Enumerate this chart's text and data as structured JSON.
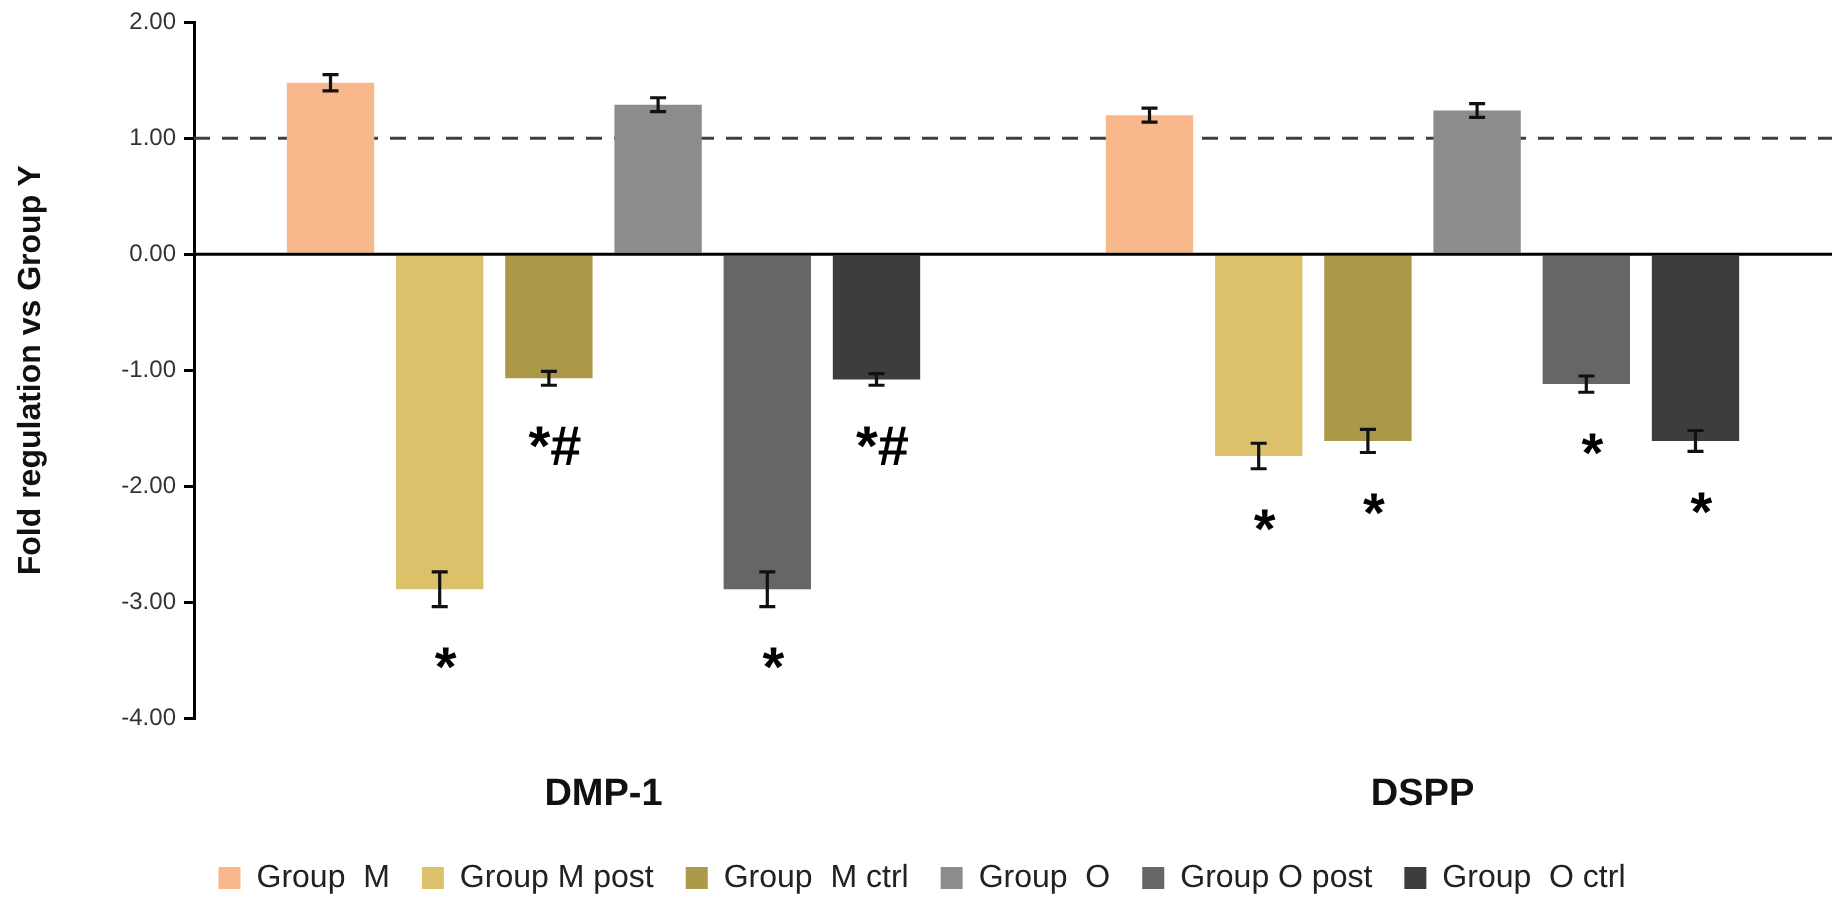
{
  "chart_data": {
    "type": "bar",
    "ylabel": "Fold regulation vs Group Y",
    "categories": [
      "DMP-1",
      "DSPP"
    ],
    "series": [
      {
        "name": "Group  M",
        "color": "#f8b88b",
        "values": [
          1.48,
          1.2
        ],
        "errors": [
          0.07,
          0.06
        ]
      },
      {
        "name": "Group M post",
        "color": "#dcc16a",
        "values": [
          -2.89,
          -1.74
        ],
        "errors": [
          0.15,
          0.11
        ],
        "value_labels": [
          "*",
          "*"
        ]
      },
      {
        "name": "Group  M ctrl",
        "color": "#ab9848",
        "values": [
          -1.07,
          -1.61
        ],
        "errors": [
          0.06,
          0.1
        ],
        "value_labels": [
          "*#",
          "*"
        ]
      },
      {
        "name": "Group  O",
        "color": "#8c8c8c",
        "values": [
          1.29,
          1.24
        ],
        "errors": [
          0.06,
          0.06
        ]
      },
      {
        "name": "Group O post",
        "color": "#666666",
        "values": [
          -2.89,
          -1.12
        ],
        "errors": [
          0.15,
          0.07
        ],
        "value_labels": [
          "*",
          "*"
        ]
      },
      {
        "name": "Group  O ctrl",
        "color": "#3d3d3d",
        "values": [
          -1.08,
          -1.61
        ],
        "errors": [
          0.05,
          0.09
        ],
        "value_labels": [
          "*#",
          "*"
        ]
      }
    ],
    "ylim": [
      -4,
      2
    ],
    "yticks": [
      {
        "value": 2,
        "label": "2.00"
      },
      {
        "value": 1,
        "label": "1.00"
      },
      {
        "value": 0,
        "label": "0.00"
      },
      {
        "value": -1,
        "label": "-1.00"
      },
      {
        "value": -2,
        "label": "-2.00"
      },
      {
        "value": -3,
        "label": "-3.00"
      },
      {
        "value": -4,
        "label": "-4.00"
      }
    ],
    "ref_lines": [
      {
        "axis": "y",
        "value": 1,
        "color": "#404040",
        "line_style": "dashed"
      }
    ],
    "legend": "bottom"
  }
}
